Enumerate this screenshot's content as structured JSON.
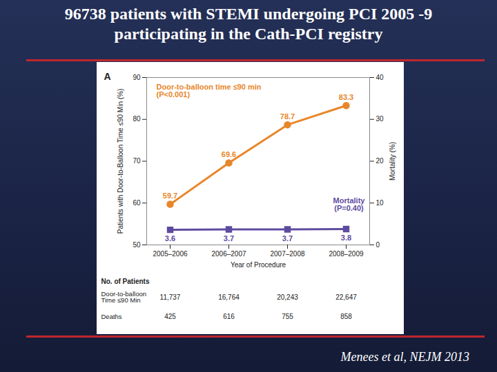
{
  "slide": {
    "title": "96738 patients with STEMI undergoing PCI 2005 -9 participating in the Cath-PCI registry",
    "citation": "Menees et al, NEJM 2013"
  },
  "chart_data": {
    "type": "line",
    "panel": "A",
    "categories": [
      "2005–2006",
      "2006–2007",
      "2007–2008",
      "2008–2009"
    ],
    "xlabel": "Year of Procedure",
    "ylabel": "Patients with Door-to-Balloon Time ≤90 Min (%)",
    "y2label": "Mortality (%)",
    "ylim": [
      50,
      90
    ],
    "yticks": [
      50,
      60,
      70,
      80,
      90
    ],
    "y2lim": [
      0,
      40
    ],
    "y2ticks": [
      0,
      10,
      20,
      30,
      40
    ],
    "data_labels": true,
    "series": [
      {
        "name": "Door-to-balloon time ≤90 min",
        "note": "(P<0.001)",
        "color": "#e8862a",
        "marker": "circle",
        "values": [
          59.7,
          69.6,
          78.7,
          83.3
        ]
      },
      {
        "name": "Mortality",
        "note": "(P=0.40)",
        "color": "#5e4ba0",
        "marker": "square",
        "axis": "y2",
        "values": [
          3.6,
          3.7,
          3.7,
          3.8
        ]
      }
    ],
    "patients_table": {
      "title": "No. of Patients",
      "rows": [
        {
          "label": "Door-to-balloon Time ≤90 Min",
          "values": [
            11737,
            16764,
            20243,
            22647
          ],
          "value_labels": [
            "11,737",
            "16,764",
            "20,243",
            "22,647"
          ]
        },
        {
          "label": "Deaths",
          "values": [
            425,
            616,
            755,
            858
          ]
        }
      ]
    }
  }
}
